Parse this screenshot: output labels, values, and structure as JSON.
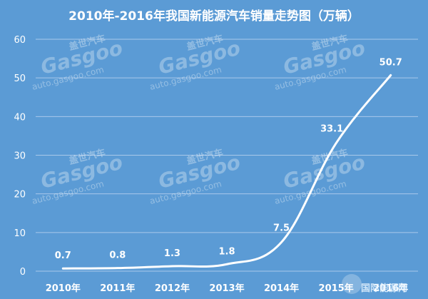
{
  "chart_data": {
    "type": "line",
    "title": "2010年-2016年我国新能源汽车销量走势图（万辆）",
    "xlabel": "",
    "ylabel": "",
    "categories": [
      "2010年",
      "2011年",
      "2012年",
      "2013年",
      "2014年",
      "2015年",
      "2016年"
    ],
    "series": [
      {
        "values": [
          0.7,
          0.8,
          1.3,
          1.8,
          7.5,
          33.1,
          50.7
        ]
      }
    ],
    "data_labels": [
      "0.7",
      "0.8",
      "1.3",
      "1.8",
      "7.5",
      "33.1",
      "50.7"
    ],
    "ylim": [
      0,
      60
    ],
    "yticks": [
      0,
      10,
      20,
      30,
      40,
      50,
      60
    ],
    "ytick_labels": [
      "0",
      "10",
      "20",
      "30",
      "40",
      "50",
      "60"
    ],
    "grid": true,
    "legend": "none",
    "colors": {
      "background": "#5b9bd5",
      "line": "#ffffff",
      "grid": "#a9c8ea",
      "text": "#ffffff"
    }
  },
  "watermark": {
    "cn": "盖世汽车",
    "logo": "Gasgoo",
    "url": "auto.gasgoo.com"
  },
  "corner_logo": {
    "text": "国际能源网"
  }
}
